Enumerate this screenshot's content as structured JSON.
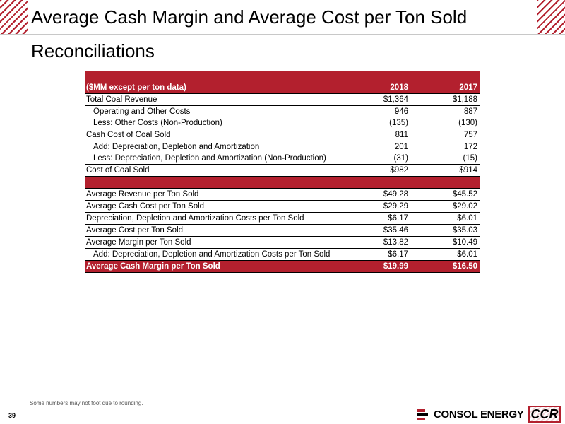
{
  "title": "Average Cash Margin and Average Cost per Ton Sold Reconciliations",
  "table": {
    "header": {
      "label": "($MM except per ton data)",
      "col1": "2018",
      "col2": "2017"
    },
    "section1": [
      {
        "label": "Total Coal Revenue",
        "v2018": "$1,364",
        "v2017": "$1,188",
        "indent": false,
        "border_top": false
      },
      {
        "label": "Operating and Other Costs",
        "v2018": "946",
        "v2017": "887",
        "indent": true,
        "border_top": true
      },
      {
        "label": "Less:  Other Costs (Non-Production)",
        "v2018": "(135)",
        "v2017": "(130)",
        "indent": true,
        "border_top": false
      },
      {
        "label": "Cash Cost of Coal Sold",
        "v2018": "811",
        "v2017": "757",
        "indent": false,
        "border_top": true
      },
      {
        "label": "Add:  Depreciation, Depletion and Amortization",
        "v2018": "201",
        "v2017": "172",
        "indent": true,
        "border_top": true
      },
      {
        "label": "Less:  Depreciation, Depletion and Amortization (Non-Production)",
        "v2018": "(31)",
        "v2017": "(15)",
        "indent": true,
        "border_top": false
      },
      {
        "label": "Cost of Coal Sold",
        "v2018": "$982",
        "v2017": "$914",
        "indent": false,
        "border_top": true
      }
    ],
    "section2": [
      {
        "label": "Average Revenue per Ton Sold",
        "v2018": "$49.28",
        "v2017": "$45.52",
        "indent": false,
        "border_top": false
      },
      {
        "label": "Average Cash Cost per Ton Sold",
        "v2018": "$29.29",
        "v2017": "$29.02",
        "indent": false,
        "border_top": true
      },
      {
        "label": "Depreciation, Depletion and Amortization Costs per Ton Sold",
        "v2018": "$6.17",
        "v2017": "$6.01",
        "indent": false,
        "border_top": true
      },
      {
        "label": "Average Cost per Ton Sold",
        "v2018": "$35.46",
        "v2017": "$35.03",
        "indent": false,
        "border_top": true
      },
      {
        "label": "Average Margin per Ton Sold",
        "v2018": "$13.82",
        "v2017": "$10.49",
        "indent": false,
        "border_top": true
      },
      {
        "label": "Add:  Depreciation, Depletion and Amortization Costs per Ton Sold",
        "v2018": "$6.17",
        "v2017": "$6.01",
        "indent": true,
        "border_top": true
      }
    ],
    "final": {
      "label": "Average Cash Margin per Ton Sold",
      "v2018": "$19.99",
      "v2017": "$16.50"
    }
  },
  "footnote": "Some numbers may not foot due to rounding.",
  "page_number": "39",
  "logo": {
    "name": "CONSOL ENERGY",
    "mark": "logo-mark-icon"
  },
  "partner_logo": "CCR",
  "colors": {
    "accent": "#b3202e",
    "header_text": "#ffffff"
  }
}
